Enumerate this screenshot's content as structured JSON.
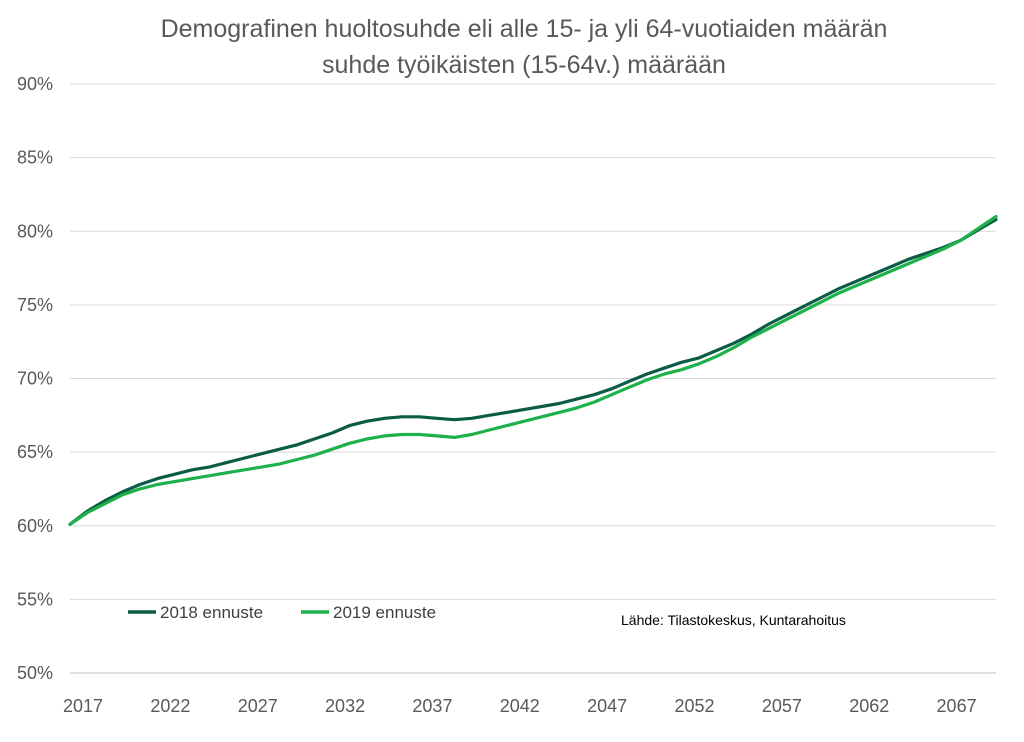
{
  "chart_data": {
    "type": "line",
    "title_lines": [
      "Demografinen huoltosuhde eli alle 15- ja yli 64-vuotiaiden määrän",
      "suhde työikäisten (15-64v.) määrään"
    ],
    "source": "Lähde: Tilastokeskus, Kuntarahoitus",
    "xlabel": "",
    "ylabel": "",
    "x_tick_labels": [
      "2017",
      "2022",
      "2027",
      "2032",
      "2037",
      "2042",
      "2047",
      "2052",
      "2057",
      "2062",
      "2067"
    ],
    "y_tick_labels": [
      "50%",
      "55%",
      "60%",
      "65%",
      "70%",
      "75%",
      "80%",
      "85%",
      "90%"
    ],
    "xlim": [
      2017,
      2070
    ],
    "ylim": [
      50,
      90
    ],
    "grid": true,
    "legend_position": "bottom-left",
    "x": [
      2017,
      2018,
      2019,
      2020,
      2021,
      2022,
      2023,
      2024,
      2025,
      2026,
      2027,
      2028,
      2029,
      2030,
      2031,
      2032,
      2033,
      2034,
      2035,
      2036,
      2037,
      2038,
      2039,
      2040,
      2041,
      2042,
      2043,
      2044,
      2045,
      2046,
      2047,
      2048,
      2049,
      2050,
      2051,
      2052,
      2053,
      2054,
      2055,
      2056,
      2057,
      2058,
      2059,
      2060,
      2061,
      2062,
      2063,
      2064,
      2065,
      2066,
      2067,
      2068,
      2069,
      2070
    ],
    "series": [
      {
        "name": "2018 ennuste",
        "color": "#0b5c46",
        "values": [
          60.1,
          61.0,
          61.7,
          62.3,
          62.8,
          63.2,
          63.5,
          63.8,
          64.0,
          64.3,
          64.6,
          64.9,
          65.2,
          65.5,
          65.9,
          66.3,
          66.8,
          67.1,
          67.3,
          67.4,
          67.4,
          67.3,
          67.2,
          67.3,
          67.5,
          67.7,
          67.9,
          68.1,
          68.3,
          68.6,
          68.9,
          69.3,
          69.8,
          70.3,
          70.7,
          71.1,
          71.4,
          71.9,
          72.4,
          73.0,
          73.7,
          74.3,
          74.9,
          75.5,
          76.1,
          76.6,
          77.1,
          77.6,
          78.1,
          78.5,
          78.9,
          79.4,
          80.1,
          80.8
        ]
      },
      {
        "name": "2019 ennuste",
        "color": "#1db14b",
        "values": [
          60.1,
          60.9,
          61.5,
          62.1,
          62.5,
          62.8,
          63.0,
          63.2,
          63.4,
          63.6,
          63.8,
          64.0,
          64.2,
          64.5,
          64.8,
          65.2,
          65.6,
          65.9,
          66.1,
          66.2,
          66.2,
          66.1,
          66.0,
          66.2,
          66.5,
          66.8,
          67.1,
          67.4,
          67.7,
          68.0,
          68.4,
          68.9,
          69.4,
          69.9,
          70.3,
          70.6,
          71.0,
          71.5,
          72.1,
          72.8,
          73.4,
          74.0,
          74.6,
          75.2,
          75.8,
          76.3,
          76.8,
          77.3,
          77.8,
          78.3,
          78.8,
          79.4,
          80.2,
          81.0
        ]
      }
    ]
  }
}
